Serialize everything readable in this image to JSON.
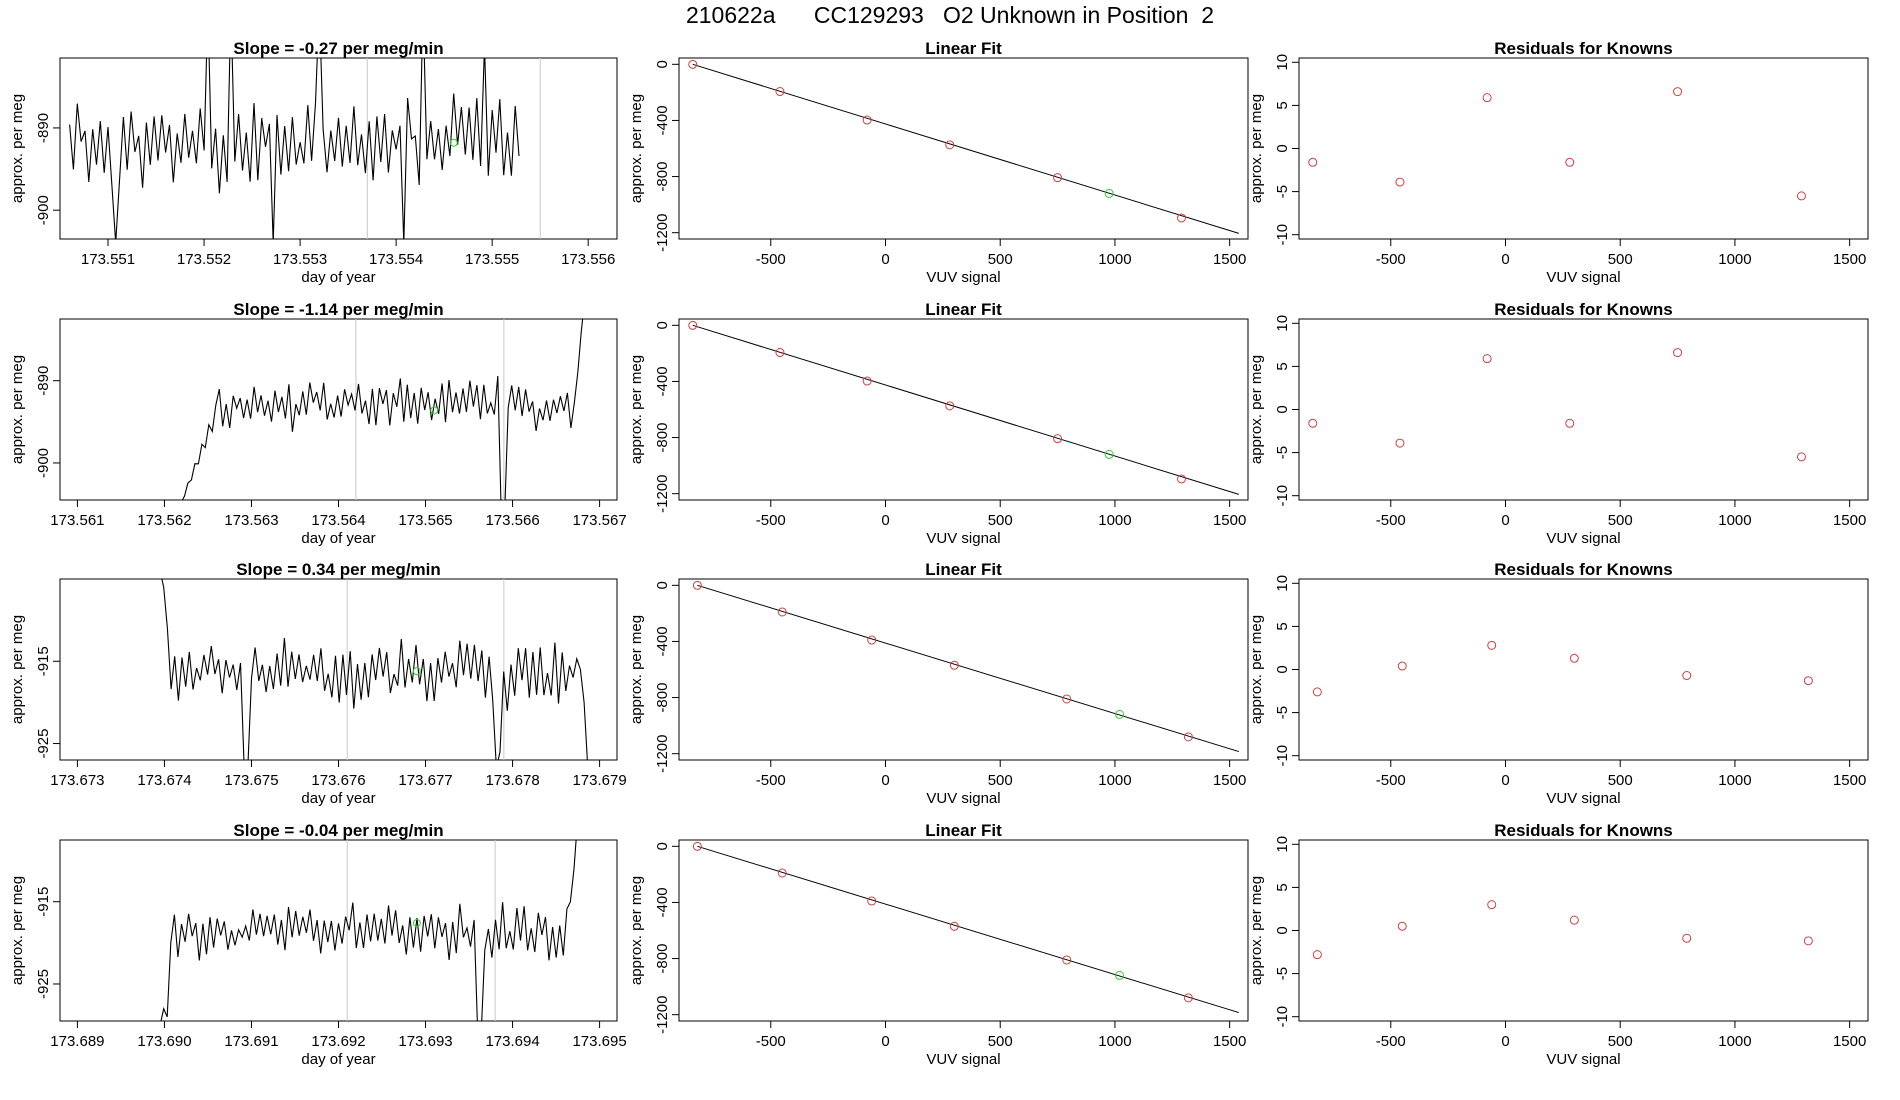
{
  "header": {
    "title": "210622a      CC129293   O2 Unknown in Position  2"
  },
  "labels": {
    "time_xlabel": "day of year",
    "vuv_xlabel": "VUV signal",
    "ylabel": "approx. per meg",
    "fit_title": "Linear Fit",
    "resid_title": "Residuals for Knowns"
  },
  "colors": {
    "line": "#000000",
    "known": "#d04040",
    "unknown": "#33cc33",
    "divider": "#c8c8c8"
  },
  "chart_data": [
    {
      "type": "line",
      "title": "Slope =  -0.27  per meg/min",
      "xlabel": "day of year",
      "ylabel": "approx. per meg",
      "xlim": [
        173.5505,
        173.5563
      ],
      "ylim": [
        -903.5,
        -881.5
      ],
      "xticks": [
        173.551,
        173.552,
        173.553,
        173.554,
        173.555,
        173.556
      ],
      "xtick_labels": [
        "173.551",
        "173.552",
        "173.553",
        "173.554",
        "173.555",
        "173.556"
      ],
      "yticks": [
        -900,
        -890
      ],
      "ytick_labels": [
        "-900",
        "-890"
      ],
      "x_start": 173.5506,
      "x_step": 4e-05,
      "baseline": -891.5,
      "amplitude": 4.2,
      "seed": 11,
      "dividers": [
        173.5537,
        173.5555
      ],
      "unknown_point": [
        173.5546,
        -891.8
      ],
      "spikes": [
        [
          12,
          -904
        ],
        [
          36,
          -875
        ],
        [
          42,
          -875
        ],
        [
          53,
          -904
        ],
        [
          65,
          -875
        ],
        [
          87,
          -904
        ],
        [
          92,
          -875
        ],
        [
          108,
          -880
        ],
        [
          118,
          -904
        ],
        [
          120,
          -875
        ],
        [
          125,
          -904
        ],
        [
          128,
          -875
        ],
        [
          140,
          -904
        ]
      ]
    },
    {
      "type": "scatter",
      "title": "Linear Fit",
      "xlabel": "VUV signal",
      "ylabel": "approx. per meg",
      "xlim": [
        -900,
        1580
      ],
      "ylim": [
        -1245,
        45
      ],
      "xticks": [
        -500,
        0,
        500,
        1000,
        1500
      ],
      "xtick_labels": [
        "-500",
        "0",
        "500",
        "1000",
        "1500"
      ],
      "yticks": [
        0,
        -400,
        -800,
        -1200
      ],
      "ytick_labels": [
        "0",
        "-400",
        "-800",
        "-1200"
      ],
      "fit_line": [
        [
          -840,
          0
        ],
        [
          1540,
          -1205
        ]
      ],
      "knowns": [
        [
          -840,
          0
        ],
        [
          -460,
          -194
        ],
        [
          -80,
          -397
        ],
        [
          280,
          -574
        ],
        [
          750,
          -808
        ],
        [
          1290,
          -1095
        ]
      ],
      "unknown": [
        [
          975,
          -920
        ]
      ]
    },
    {
      "type": "scatter",
      "title": "Residuals for Knowns",
      "xlabel": "VUV signal",
      "ylabel": "approx. per meg",
      "xlim": [
        -900,
        1580
      ],
      "ylim": [
        -10.5,
        10.5
      ],
      "xticks": [
        -500,
        0,
        500,
        1000,
        1500
      ],
      "xtick_labels": [
        "-500",
        "0",
        "500",
        "1000",
        "1500"
      ],
      "yticks": [
        -10,
        -5,
        0,
        5,
        10
      ],
      "ytick_labels": [
        "-10",
        "-5",
        "0",
        "5",
        "10"
      ],
      "knowns": [
        [
          -840,
          -1.6
        ],
        [
          -460,
          -3.9
        ],
        [
          -80,
          5.9
        ],
        [
          280,
          -1.6
        ],
        [
          750,
          6.6
        ],
        [
          1290,
          -5.5
        ]
      ]
    },
    {
      "type": "line",
      "title": "Slope =  -1.14  per meg/min",
      "xlabel": "day of year",
      "ylabel": "approx. per meg",
      "xlim": [
        173.5608,
        173.5672
      ],
      "ylim": [
        -904.5,
        -882.5
      ],
      "xticks": [
        173.561,
        173.562,
        173.563,
        173.564,
        173.565,
        173.566,
        173.567
      ],
      "xtick_labels": [
        "173.561",
        "173.562",
        "173.563",
        "173.564",
        "173.565",
        "173.566",
        "173.567"
      ],
      "yticks": [
        -900,
        -890
      ],
      "ytick_labels": [
        "-900",
        "-890"
      ],
      "x_start": 173.56215,
      "x_step": 4e-05,
      "baseline": -893.0,
      "amplitude": 2.4,
      "seed": 23,
      "ramp_start": -906,
      "ramp_points": 12,
      "dividers": [
        173.5642,
        173.5659
      ],
      "unknown_point": [
        173.5651,
        -893.6
      ],
      "spikes": [
        [
          93,
          -906
        ],
        [
          94,
          -906
        ]
      ],
      "end_rise": [
        [
          115,
          -889
        ],
        [
          116,
          -884
        ],
        [
          117,
          -880
        ]
      ]
    },
    {
      "type": "scatter",
      "title": "Linear Fit",
      "xlabel": "VUV signal",
      "ylabel": "approx. per meg",
      "xlim": [
        -900,
        1580
      ],
      "ylim": [
        -1245,
        45
      ],
      "xticks": [
        -500,
        0,
        500,
        1000,
        1500
      ],
      "xtick_labels": [
        "-500",
        "0",
        "500",
        "1000",
        "1500"
      ],
      "yticks": [
        0,
        -400,
        -800,
        -1200
      ],
      "ytick_labels": [
        "0",
        "-400",
        "-800",
        "-1200"
      ],
      "fit_line": [
        [
          -840,
          0
        ],
        [
          1540,
          -1205
        ]
      ],
      "knowns": [
        [
          -840,
          0
        ],
        [
          -460,
          -194
        ],
        [
          -80,
          -397
        ],
        [
          280,
          -574
        ],
        [
          750,
          -808
        ],
        [
          1290,
          -1095
        ]
      ],
      "unknown": [
        [
          975,
          -920
        ]
      ]
    },
    {
      "type": "scatter",
      "title": "Residuals for Knowns",
      "xlabel": "VUV signal",
      "ylabel": "approx. per meg",
      "xlim": [
        -900,
        1580
      ],
      "ylim": [
        -10.5,
        10.5
      ],
      "xticks": [
        -500,
        0,
        500,
        1000,
        1500
      ],
      "xtick_labels": [
        "-500",
        "0",
        "500",
        "1000",
        "1500"
      ],
      "yticks": [
        -10,
        -5,
        0,
        5,
        10
      ],
      "ytick_labels": [
        "-10",
        "-5",
        "0",
        "5",
        "10"
      ],
      "knowns": [
        [
          -840,
          -1.6
        ],
        [
          -460,
          -3.9
        ],
        [
          -80,
          5.9
        ],
        [
          280,
          -1.6
        ],
        [
          750,
          6.6
        ],
        [
          1290,
          -5.5
        ]
      ]
    },
    {
      "type": "line",
      "title": "Slope =  0.34  per meg/min",
      "xlabel": "day of year",
      "ylabel": "approx. per meg",
      "xlim": [
        173.6728,
        173.6792
      ],
      "ylim": [
        -927,
        -905
      ],
      "xticks": [
        173.673,
        173.674,
        173.675,
        173.676,
        173.677,
        173.678,
        173.679
      ],
      "xtick_labels": [
        "173.673",
        "173.674",
        "173.675",
        "173.676",
        "173.677",
        "173.678",
        "173.679"
      ],
      "yticks": [
        -925,
        -915
      ],
      "ytick_labels": [
        "-925",
        "-915"
      ],
      "x_start": 173.67395,
      "x_step": 4.2e-05,
      "baseline": -916.5,
      "amplitude": 3.2,
      "seed": 37,
      "head": [
        [
          0,
          -904
        ],
        [
          1,
          -906
        ],
        [
          2,
          -911
        ]
      ],
      "dividers": [
        173.6761,
        173.6779
      ],
      "unknown_point": [
        173.6769,
        -916.2
      ],
      "spikes": [
        [
          23,
          -928
        ],
        [
          24,
          -928
        ],
        [
          92,
          -928
        ],
        [
          93,
          -926
        ]
      ],
      "end_drop": [
        [
          115,
          -916
        ],
        [
          116,
          -920
        ],
        [
          117,
          -928
        ]
      ]
    },
    {
      "type": "scatter",
      "title": "Linear Fit",
      "xlabel": "VUV signal",
      "ylabel": "approx. per meg",
      "xlim": [
        -900,
        1580
      ],
      "ylim": [
        -1245,
        45
      ],
      "xticks": [
        -500,
        0,
        500,
        1000,
        1500
      ],
      "xtick_labels": [
        "-500",
        "0",
        "500",
        "1000",
        "1500"
      ],
      "yticks": [
        0,
        -400,
        -800,
        -1200
      ],
      "ytick_labels": [
        "0",
        "-400",
        "-800",
        "-1200"
      ],
      "fit_line": [
        [
          -820,
          0
        ],
        [
          1540,
          -1185
        ]
      ],
      "knowns": [
        [
          -820,
          0
        ],
        [
          -450,
          -190
        ],
        [
          -60,
          -390
        ],
        [
          300,
          -570
        ],
        [
          790,
          -810
        ],
        [
          1320,
          -1080
        ]
      ],
      "unknown": [
        [
          1020,
          -920
        ]
      ]
    },
    {
      "type": "scatter",
      "title": "Residuals for Knowns",
      "xlabel": "VUV signal",
      "ylabel": "approx. per meg",
      "xlim": [
        -900,
        1580
      ],
      "ylim": [
        -10.5,
        10.5
      ],
      "xticks": [
        -500,
        0,
        500,
        1000,
        1500
      ],
      "xtick_labels": [
        "-500",
        "0",
        "500",
        "1000",
        "1500"
      ],
      "yticks": [
        -10,
        -5,
        0,
        5,
        10
      ],
      "ytick_labels": [
        "-10",
        "-5",
        "0",
        "5",
        "10"
      ],
      "knowns": [
        [
          -820,
          -2.6
        ],
        [
          -450,
          0.4
        ],
        [
          -60,
          2.8
        ],
        [
          300,
          1.3
        ],
        [
          790,
          -0.7
        ],
        [
          1320,
          -1.3
        ]
      ]
    },
    {
      "type": "line",
      "title": "Slope =  -0.04  per meg/min",
      "xlabel": "day of year",
      "ylabel": "approx. per meg",
      "xlim": [
        173.6888,
        173.6952
      ],
      "ylim": [
        -929.5,
        -907.5
      ],
      "xticks": [
        173.689,
        173.69,
        173.691,
        173.692,
        173.693,
        173.694,
        173.695
      ],
      "xtick_labels": [
        "173.689",
        "173.690",
        "173.691",
        "173.692",
        "173.693",
        "173.694",
        "173.695"
      ],
      "yticks": [
        -925,
        -915
      ],
      "ytick_labels": [
        "-925",
        "-915"
      ],
      "x_start": 173.68995,
      "x_step": 4.1e-05,
      "baseline": -918.5,
      "amplitude": 2.5,
      "seed": 53,
      "head": [
        [
          0,
          -930
        ],
        [
          1,
          -928
        ],
        [
          2,
          -929
        ],
        [
          3,
          -920
        ]
      ],
      "dividers": [
        173.6921,
        173.6938
      ],
      "unknown_point": [
        173.6929,
        -917.6
      ],
      "spikes": [
        [
          89,
          -931
        ],
        [
          90,
          -931
        ]
      ],
      "end_rise": [
        [
          115,
          -915
        ],
        [
          116,
          -911
        ],
        [
          117,
          -905
        ]
      ]
    },
    {
      "type": "scatter",
      "title": "Linear Fit",
      "xlabel": "VUV signal",
      "ylabel": "approx. per meg",
      "xlim": [
        -900,
        1580
      ],
      "ylim": [
        -1245,
        45
      ],
      "xticks": [
        -500,
        0,
        500,
        1000,
        1500
      ],
      "xtick_labels": [
        "-500",
        "0",
        "500",
        "1000",
        "1500"
      ],
      "yticks": [
        0,
        -400,
        -800,
        -1200
      ],
      "ytick_labels": [
        "0",
        "-400",
        "-800",
        "-1200"
      ],
      "fit_line": [
        [
          -820,
          0
        ],
        [
          1540,
          -1185
        ]
      ],
      "knowns": [
        [
          -820,
          0
        ],
        [
          -450,
          -190
        ],
        [
          -60,
          -390
        ],
        [
          300,
          -570
        ],
        [
          790,
          -810
        ],
        [
          1320,
          -1080
        ]
      ],
      "unknown": [
        [
          1020,
          -920
        ]
      ]
    },
    {
      "type": "scatter",
      "title": "Residuals for Knowns",
      "xlabel": "VUV signal",
      "ylabel": "approx. per meg",
      "xlim": [
        -900,
        1580
      ],
      "ylim": [
        -10.5,
        10.5
      ],
      "xticks": [
        -500,
        0,
        500,
        1000,
        1500
      ],
      "xtick_labels": [
        "-500",
        "0",
        "500",
        "1000",
        "1500"
      ],
      "yticks": [
        -10,
        -5,
        0,
        5,
        10
      ],
      "ytick_labels": [
        "-10",
        "-5",
        "0",
        "5",
        "10"
      ],
      "knowns": [
        [
          -820,
          -2.8
        ],
        [
          -450,
          0.5
        ],
        [
          -60,
          3.0
        ],
        [
          300,
          1.2
        ],
        [
          790,
          -0.9
        ],
        [
          1320,
          -1.2
        ]
      ]
    }
  ]
}
